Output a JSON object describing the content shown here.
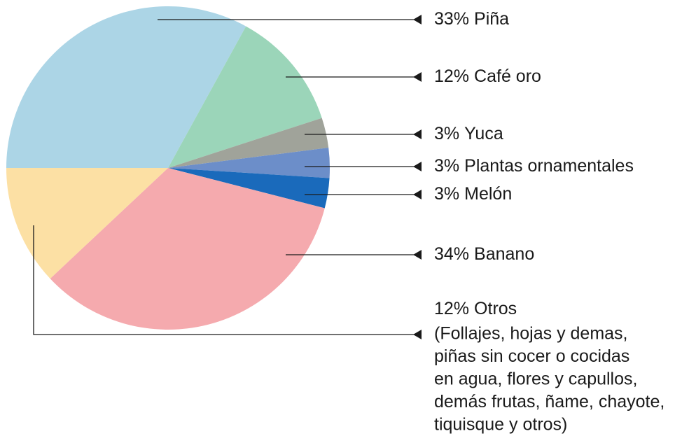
{
  "chart_data": {
    "type": "pie",
    "categories": [
      "Piña",
      "Café oro",
      "Yuca",
      "Plantas ornamentales",
      "Melón",
      "Banano",
      "Otros"
    ],
    "values": [
      33,
      12,
      3,
      3,
      3,
      34,
      12
    ],
    "value_labels": [
      "33%",
      "12%",
      "3%",
      "3%",
      "3%",
      "34%",
      "12%"
    ],
    "colors": [
      "#acd5e6",
      "#9bd5b9",
      "#a0a39a",
      "#6c8ec9",
      "#1a6abb",
      "#f5aaae",
      "#fce0a4"
    ],
    "otros_detail": [
      "(Follajes, hojas y demas,",
      "piñas sin cocer o cocidas",
      "en agua, flores y capullos,",
      "demás frutas, ñame, chayote,",
      "tiquisque y otros)"
    ]
  }
}
